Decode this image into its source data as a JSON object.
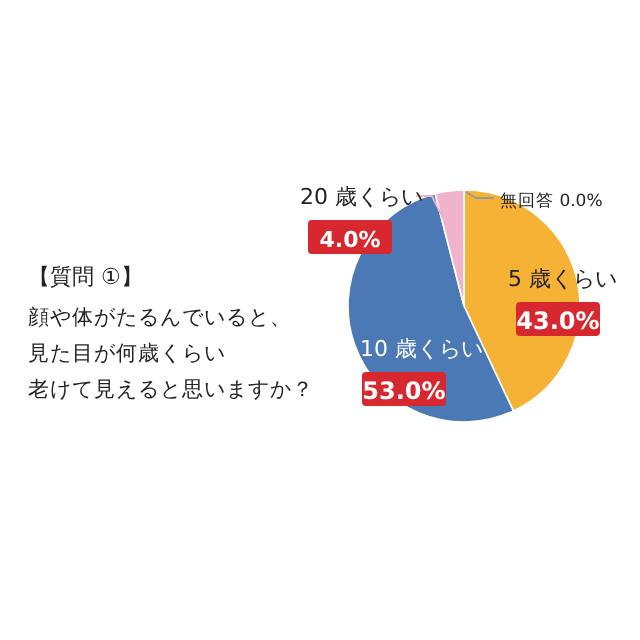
{
  "chart_data": {
    "type": "pie",
    "title": "【質問 ①】",
    "subtitle": "顔や体がたるんでいると、見た目が何歳くらい老けて見えると思いますか？",
    "categories": [
      "5 歳くらい",
      "10 歳くらい",
      "20 歳くらい",
      "無回答"
    ],
    "values": [
      43.0,
      53.0,
      4.0,
      0.0
    ],
    "value_labels": [
      "43.0%",
      "53.0%",
      "4.0%",
      "0.0%"
    ],
    "colors": [
      "#f6b234",
      "#4b79b6",
      "#efb3cb",
      "#999999"
    ]
  }
}
